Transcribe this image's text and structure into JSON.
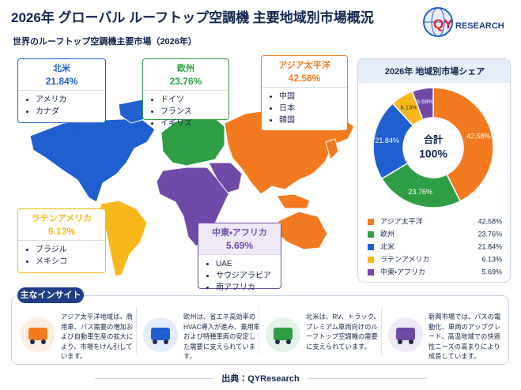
{
  "header": {
    "title": "2026年 グローバル ルーフトップ空調機 主要地域別市場概況",
    "subtitle": "世界のルーフトップ空調機主要市場（2026年）",
    "logo_prefix": "QY",
    "logo_suffix": "RESEARCH"
  },
  "region_countries": [
    [
      "中国",
      "日本",
      "韓国"
    ],
    [
      "ドイツ",
      "フランス",
      "イギリス"
    ],
    [
      "アメリカ",
      "カナダ"
    ],
    [
      "ブラジル",
      "メキシコ"
    ],
    [
      "UAE",
      "サウジアラビア",
      "南アフリカ"
    ]
  ],
  "chart_data": {
    "type": "pie",
    "donut": true,
    "title": "2026年 地域別市場シェア",
    "categories": [
      "アジア太平洋",
      "欧州",
      "北米",
      "ラテンアメリカ",
      "中東・アフリカ"
    ],
    "values": [
      42.58,
      23.76,
      21.84,
      6.13,
      5.69
    ],
    "value_labels": [
      "42.58%",
      "23.76%",
      "21.84%",
      "6.13%",
      "5.69%"
    ],
    "colors": [
      "#f47a1f",
      "#2e9e44",
      "#1f5fd0",
      "#f8b81c",
      "#6f4aa8"
    ],
    "center_title": "合計",
    "center_value": 100,
    "center_value_label": "100%"
  },
  "insights": {
    "title": "主なインサイト",
    "items": [
      "アジア太平洋地域は、商用車、バス需要の増加および自動車生産の拡大により、市場をけん引しています。",
      "欧州は、省エネ高効率のHVAC導入が進み、乗用車および特種車両の安定した需要に支えられています。",
      "北米は、RV、トラック、プレミアム車両向けのルーフトップ空調機の需要に支えられています。",
      "新興市場では、バスの電動化、車両のアップグレード、高温地域での快適性ニーズの高まりにより成長しています。"
    ]
  },
  "source": "出典：QYResearch"
}
